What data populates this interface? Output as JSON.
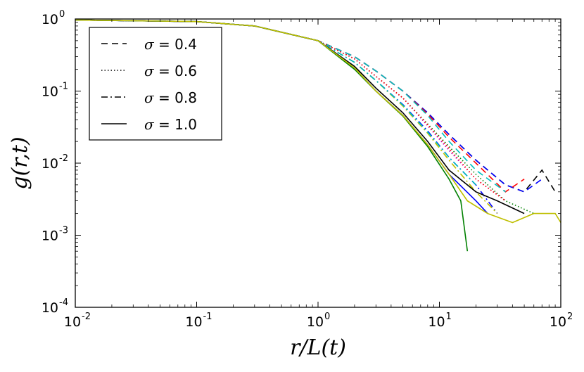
{
  "chart_data": {
    "type": "line",
    "title": "",
    "xlabel": "r/L(t)",
    "ylabel": "g(r,t)",
    "xscale": "log",
    "yscale": "log",
    "xlim": [
      0.01,
      100
    ],
    "ylim": [
      0.0001,
      1
    ],
    "grid": false,
    "legend_position": "upper-left",
    "x_ticks": [
      {
        "base": "10",
        "exp": "-2",
        "value": 0.01
      },
      {
        "base": "10",
        "exp": "-1",
        "value": 0.1
      },
      {
        "base": "10",
        "exp": "0",
        "value": 1
      },
      {
        "base": "10",
        "exp": "1",
        "value": 10
      },
      {
        "base": "10",
        "exp": "2",
        "value": 100
      }
    ],
    "y_ticks": [
      {
        "base": "10",
        "exp": "0",
        "value": 1
      },
      {
        "base": "10",
        "exp": "-1",
        "value": 0.1
      },
      {
        "base": "10",
        "exp": "-2",
        "value": 0.01
      },
      {
        "base": "10",
        "exp": "-3",
        "value": 0.001
      },
      {
        "base": "10",
        "exp": "-4",
        "value": 0.0001
      }
    ],
    "legend": [
      {
        "symbol": "σ",
        "text": " = 0.4",
        "style": "dashed"
      },
      {
        "symbol": "σ",
        "text": " = 0.6",
        "style": "dotted"
      },
      {
        "symbol": "σ",
        "text": " = 0.8",
        "style": "dashdot"
      },
      {
        "symbol": "σ",
        "text": " = 1.0",
        "style": "solid"
      }
    ],
    "series": [
      {
        "group": "0.4",
        "style": "dashed",
        "color": "#000000",
        "x": [
          0.01,
          0.1,
          0.3,
          1,
          2,
          3,
          5,
          8,
          12,
          20,
          35,
          50,
          70,
          90
        ],
        "y": [
          0.97,
          0.92,
          0.8,
          0.5,
          0.3,
          0.19,
          0.1,
          0.05,
          0.025,
          0.011,
          0.005,
          0.004,
          0.008,
          0.004
        ]
      },
      {
        "group": "0.4",
        "style": "dashed",
        "color": "#0000ff",
        "x": [
          0.01,
          0.1,
          0.3,
          1,
          2,
          3,
          5,
          8,
          12,
          20,
          35,
          50,
          70
        ],
        "y": [
          0.97,
          0.92,
          0.8,
          0.5,
          0.3,
          0.19,
          0.1,
          0.05,
          0.025,
          0.011,
          0.005,
          0.004,
          0.006
        ]
      },
      {
        "group": "0.4",
        "style": "dashed",
        "color": "#ff0000",
        "x": [
          0.01,
          0.1,
          0.3,
          1,
          2,
          3,
          5,
          8,
          12,
          20,
          35,
          50
        ],
        "y": [
          0.97,
          0.92,
          0.8,
          0.5,
          0.3,
          0.19,
          0.1,
          0.048,
          0.023,
          0.01,
          0.004,
          0.006
        ]
      },
      {
        "group": "0.4",
        "style": "dashed",
        "color": "#00bfbf",
        "x": [
          0.01,
          0.1,
          0.3,
          1,
          2,
          3,
          5,
          8,
          12,
          20,
          35
        ],
        "y": [
          0.97,
          0.92,
          0.8,
          0.5,
          0.3,
          0.19,
          0.1,
          0.046,
          0.02,
          0.008,
          0.004
        ]
      },
      {
        "group": "0.6",
        "style": "dotted",
        "color": "#008000",
        "x": [
          0.01,
          0.1,
          0.3,
          1,
          2,
          3,
          5,
          8,
          12,
          20,
          35,
          60
        ],
        "y": [
          0.97,
          0.92,
          0.8,
          0.5,
          0.28,
          0.16,
          0.08,
          0.035,
          0.017,
          0.007,
          0.003,
          0.002
        ]
      },
      {
        "group": "0.6",
        "style": "dotted",
        "color": "#bf00bf",
        "x": [
          0.01,
          0.1,
          0.3,
          1,
          2,
          3,
          5,
          8,
          12,
          20,
          35
        ],
        "y": [
          0.97,
          0.92,
          0.8,
          0.5,
          0.28,
          0.16,
          0.08,
          0.033,
          0.015,
          0.006,
          0.003
        ]
      },
      {
        "group": "0.6",
        "style": "dotted",
        "color": "#ff0000",
        "x": [
          0.01,
          0.1,
          0.3,
          1,
          2,
          3,
          5,
          8,
          12,
          20,
          35
        ],
        "y": [
          0.97,
          0.92,
          0.8,
          0.5,
          0.28,
          0.16,
          0.08,
          0.034,
          0.016,
          0.006,
          0.003
        ]
      },
      {
        "group": "0.8",
        "style": "dashdot",
        "color": "#0000ff",
        "x": [
          0.01,
          0.1,
          0.3,
          1,
          2,
          3,
          5,
          8,
          12,
          20,
          30
        ],
        "y": [
          0.97,
          0.92,
          0.8,
          0.5,
          0.25,
          0.14,
          0.065,
          0.028,
          0.012,
          0.005,
          0.002
        ]
      },
      {
        "group": "0.8",
        "style": "dashdot",
        "color": "#bfbf00",
        "x": [
          0.01,
          0.1,
          0.3,
          1,
          2,
          3,
          5,
          8,
          12,
          20,
          30
        ],
        "y": [
          0.97,
          0.92,
          0.8,
          0.5,
          0.25,
          0.14,
          0.062,
          0.026,
          0.011,
          0.004,
          0.002
        ]
      },
      {
        "group": "0.8",
        "style": "dashdot",
        "color": "#00bfbf",
        "x": [
          0.01,
          0.1,
          0.3,
          1,
          2,
          3,
          5,
          8,
          12,
          20
        ],
        "y": [
          0.97,
          0.92,
          0.8,
          0.5,
          0.25,
          0.14,
          0.064,
          0.027,
          0.012,
          0.005
        ]
      },
      {
        "group": "1.0",
        "style": "solid",
        "color": "#000000",
        "x": [
          0.01,
          0.1,
          0.3,
          1,
          2,
          3,
          5,
          8,
          12,
          20,
          30,
          50
        ],
        "y": [
          0.97,
          0.92,
          0.8,
          0.5,
          0.22,
          0.11,
          0.05,
          0.02,
          0.008,
          0.004,
          0.003,
          0.002
        ]
      },
      {
        "group": "1.0",
        "style": "solid",
        "color": "#0000ff",
        "x": [
          0.01,
          0.1,
          0.3,
          1,
          2,
          3,
          5,
          8,
          12,
          20,
          25
        ],
        "y": [
          0.97,
          0.92,
          0.8,
          0.5,
          0.21,
          0.1,
          0.046,
          0.018,
          0.007,
          0.003,
          0.002
        ]
      },
      {
        "group": "1.0",
        "style": "solid",
        "color": "#008000",
        "x": [
          0.01,
          0.1,
          0.3,
          1,
          2,
          3,
          5,
          8,
          12,
          15,
          17
        ],
        "y": [
          0.97,
          0.92,
          0.8,
          0.5,
          0.2,
          0.1,
          0.045,
          0.017,
          0.006,
          0.003,
          0.0006
        ]
      },
      {
        "group": "1.0",
        "style": "solid",
        "color": "#bfbf00",
        "x": [
          0.01,
          0.1,
          0.3,
          1,
          2,
          3,
          5,
          8,
          12,
          17,
          25,
          40,
          60,
          90,
          100
        ],
        "y": [
          0.97,
          0.92,
          0.8,
          0.5,
          0.21,
          0.1,
          0.046,
          0.018,
          0.007,
          0.003,
          0.002,
          0.0015,
          0.002,
          0.002,
          0.0015
        ]
      }
    ]
  }
}
